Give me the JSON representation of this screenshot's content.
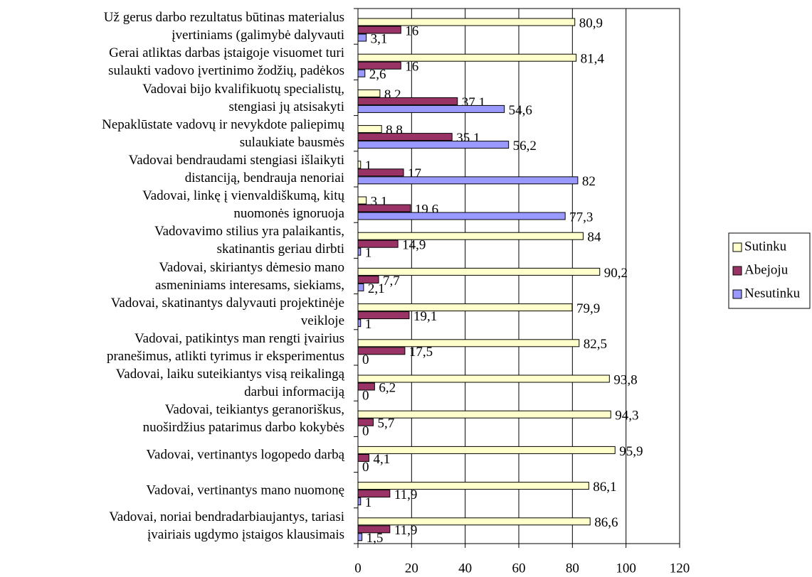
{
  "chart_data": {
    "type": "hbar",
    "categories": [
      "Už gerus darbo rezultatus būtinas materialus\nįvertiniams (galimybė dalyvauti",
      "Gerai atliktas darbas įstaigoje visuomet turi\nsulaukti vadovo įvertinimo žodžių, padėkos",
      "Vadovai bijo kvalifikuotų specialistų,\nstengiasi jų atsisakyti",
      "Nepaklūstate vadovų ir nevykdote paliepimų\nsulaukiate bausmės",
      "Vadovai bendraudami stengiasi išlaikyti\ndistanciją, bendrauja nenoriai",
      "Vadovai, linkę į vienvaldiškumą, kitų\nnuomonės ignoruoja",
      "Vadovavimo stilius yra palaikantis,\nskatinantis geriau dirbti",
      "Vadovai, skiriantys dėmesio  mano\nasmeniniams interesams, siekiams,",
      "Vadovai, skatinantys dalyvauti projektinėje\nveikloje",
      "Vadovai, patikintys man rengti įvairius\npranešimus, atlikti tyrimus ir eksperimentus",
      "Vadovai, laiku suteikiantys visą reikalingą\ndarbui informaciją",
      "Vadovai, teikiantys geranoriškus,\nnuoširdžius patarimus darbo kokybės",
      "Vadovai, vertinantys logopedo darbą",
      "Vadovai, vertinantys mano nuomonę",
      "Vadovai, noriai bendradarbiaujantys, tariasi\nįvairiais ugdymo įstaigos klausimais"
    ],
    "series": [
      {
        "name": "Sutinku",
        "color": "#ffffcc",
        "values": [
          80.9,
          81.4,
          8.2,
          8.8,
          1,
          3.1,
          84,
          90.2,
          79.9,
          82.5,
          93.8,
          94.3,
          95.9,
          86.1,
          86.6
        ],
        "value_labels": [
          "80,9",
          "81,4",
          "8,2",
          "8,8",
          "1",
          "3,1",
          "84",
          "90,2",
          "79,9",
          "82,5",
          "93,8",
          "94,3",
          "95,9",
          "86,1",
          "86,6"
        ]
      },
      {
        "name": "Abejoju",
        "color": "#993366",
        "values": [
          16,
          16,
          37.1,
          35.1,
          17,
          19.6,
          14.9,
          7.7,
          19.1,
          17.5,
          6.2,
          5.7,
          4.1,
          11.9,
          11.9
        ],
        "value_labels": [
          "16",
          "16",
          "37,1",
          "35,1",
          "17",
          "19,6",
          "14,9",
          "7,7",
          "19,1",
          "17,5",
          "6,2",
          "5,7",
          "4,1",
          "11,9",
          "11,9"
        ]
      },
      {
        "name": "Nesutinku",
        "color": "#9999ff",
        "values": [
          3.1,
          2.6,
          54.6,
          56.2,
          82,
          77.3,
          1,
          2.1,
          1,
          0,
          0,
          0,
          0,
          1,
          1.5
        ],
        "value_labels": [
          "3,1",
          "2,6",
          "54,6",
          "56,2",
          "82",
          "77,3",
          "1",
          "2,1",
          "1",
          "0",
          "0",
          "0",
          "0",
          "1",
          "1,5"
        ]
      }
    ],
    "xlim": [
      0,
      120
    ],
    "xticks": [
      0,
      20,
      40,
      60,
      80,
      100,
      120
    ],
    "grid": true,
    "legend": "right"
  }
}
